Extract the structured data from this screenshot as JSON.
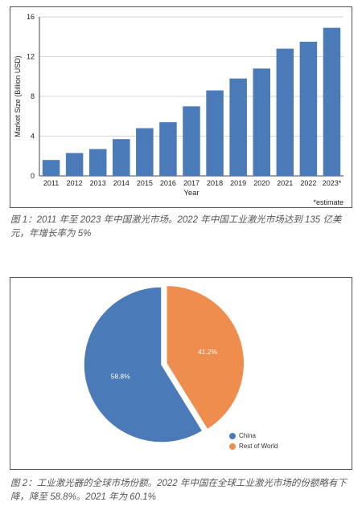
{
  "chart_data": [
    {
      "type": "bar",
      "title": "",
      "xlabel": "Year",
      "ylabel": "Market Size (Billion USD)",
      "ylim": [
        0,
        16
      ],
      "yticks": [
        "0",
        "4",
        "8",
        "12",
        "16"
      ],
      "grid": true,
      "bar_color": "#4a7ab8",
      "categories": [
        "2011",
        "2012",
        "2013",
        "2014",
        "2015",
        "2016",
        "2017",
        "2018",
        "2019",
        "2020",
        "2021",
        "2022",
        "2023*"
      ],
      "values": [
        1.6,
        2.3,
        2.7,
        3.7,
        4.8,
        5.4,
        7.0,
        8.6,
        9.8,
        10.8,
        12.8,
        13.5,
        14.9
      ],
      "note": "*estimate"
    },
    {
      "type": "pie",
      "title": "",
      "slices": [
        {
          "label": "China",
          "value": 58.8,
          "value_label": "58.8%",
          "color": "#4a7ab8"
        },
        {
          "label": "Rest of World",
          "value": 41.2,
          "value_label": "41.2%",
          "color": "#ee8d4d"
        }
      ],
      "legend_position": "bottom-right"
    }
  ],
  "captions": {
    "figure1": "图 1：2011 年至 2023 年中国激光市场。2022 年中国工业激光市场达到 135 亿美元，年增长率为 5%",
    "figure2": "图 2：工业激光器的全球市场份额。2022 年中国在全球工业激光市场的份额略有下降，降至 58.8%。2021 年为 60.1%"
  }
}
